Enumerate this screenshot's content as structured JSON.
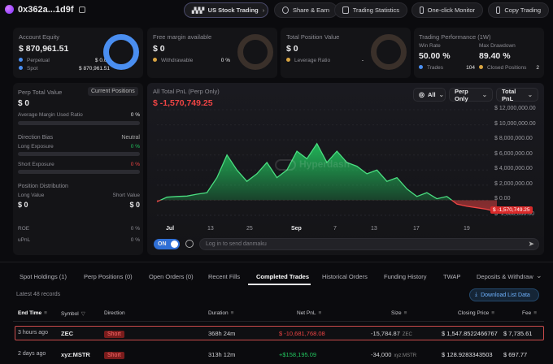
{
  "header": {
    "address": "0x362a...1d9f",
    "us_stock_trading": "US Stock Trading",
    "share_earn": "Share & Earn",
    "trading_statistics": "Trading Statistics",
    "one_click_monitor": "One-click Monitor",
    "copy_trading": "Copy Trading"
  },
  "account_equity": {
    "label": "Account Equity",
    "value": "$ 870,961.51",
    "perpetual_label": "Perpetual",
    "perpetual_value": "$ 0.00",
    "spot_label": "Spot",
    "spot_value": "$ 870,961.51"
  },
  "free_margin": {
    "label": "Free margin available",
    "value": "$ 0",
    "withdrawable_label": "Withdrawable",
    "withdrawable_value": "0 %"
  },
  "total_position": {
    "label": "Total Position Value",
    "value": "$ 0",
    "leverage_label": "Leverage Ratio",
    "leverage_value": "-"
  },
  "trading_performance": {
    "label": "Trading Performance (1W)",
    "win_rate_label": "Win Rate",
    "win_rate_value": "50.00 %",
    "max_drawdown_label": "Max Drawdown",
    "max_drawdown_value": "89.40 %",
    "trades_label": "Trades",
    "trades_value": "104",
    "closed_positions_label": "Closed Positions",
    "closed_positions_value": "2"
  },
  "perp_panel": {
    "perp_total_label": "Perp Total Value",
    "current_positions": "Current Positions",
    "perp_total_value": "$ 0",
    "avg_margin_label": "Average Margin Used Ratio",
    "avg_margin_value": "0 %",
    "direction_bias_label": "Direction Bias",
    "direction_bias_value": "Neutral",
    "long_exposure_label": "Long Exposure",
    "long_exposure_value": "0 %",
    "short_exposure_label": "Short Exposure",
    "short_exposure_value": "0 %",
    "position_distribution_label": "Position Distribution",
    "long_value_label": "Long Value",
    "short_value_label": "Short Value",
    "long_value": "$ 0",
    "short_value": "$ 0",
    "roe_label": "ROE",
    "roe_value": "0 %",
    "upnl_label": "uPnL",
    "upnl_value": "0 %"
  },
  "pnl_chart": {
    "title": "All Total PnL (Perp Only)",
    "value": "$ -1,570,749.25",
    "filter_all": "All",
    "filter_perp": "Perp Only",
    "filter_total": "Total PnL",
    "watermark": "Hyperdash",
    "current_label": "$ -1,570,749.25",
    "toggle_label": "ON",
    "danmaku_placeholder": "Log in to send danmaku"
  },
  "chart_data": {
    "type": "area",
    "x_tick_labels": [
      "Jul",
      "13",
      "25",
      "Sep",
      "7",
      "13",
      "17",
      "19"
    ],
    "y_tick_labels": [
      "$ 12,000,000.00",
      "$ 10,000,000.00",
      "$ 8,000,000.00",
      "$ 6,000,000.00",
      "$ 4,000,000.00",
      "$ 2,000,000.00",
      "$ 0.00",
      "$ -2,000,000.00"
    ],
    "ylim": [
      -2000000,
      12000000
    ],
    "values": [
      -200000,
      400000,
      500000,
      550000,
      800000,
      1000000,
      3000000,
      6000000,
      4000000,
      2500000,
      3500000,
      5000000,
      3000000,
      4000000,
      6500000,
      5500000,
      7500000,
      5000000,
      6500000,
      5000000,
      4500000,
      3500000,
      4000000,
      2500000,
      3000000,
      1500000,
      500000,
      1000000,
      200000,
      500000,
      -500000,
      -800000,
      -1000000,
      -1200000,
      -1570749
    ],
    "color_positive": "#22c55e",
    "color_negative": "#ef4444"
  },
  "tabs": [
    "Spot Holdings (1)",
    "Perp Positions (0)",
    "Open Orders (0)",
    "Recent Fills",
    "Completed Trades",
    "Historical Orders",
    "Funding History",
    "TWAP",
    "Deposits & Withdraw"
  ],
  "records": {
    "count_label": "Latest 48 records",
    "download_label": "Download List Data"
  },
  "table": {
    "headers": [
      "End Time",
      "Symbol",
      "Direction",
      "Duration",
      "Net PnL",
      "Size",
      "Closing Price",
      "Fee"
    ],
    "rows": [
      {
        "end_time": "3 hours ago",
        "symbol": "ZEC",
        "direction": "Short",
        "duration": "368h 24m",
        "net_pnl": "$ -10,681,768.08",
        "size": "-15,784.87",
        "size_unit": "ZEC",
        "closing_price": "$ 1,547.8522466767",
        "fee": "$ 7,735.61"
      },
      {
        "end_time": "2 days ago",
        "symbol": "xyz:MSTR",
        "direction": "Short",
        "duration": "313h 12m",
        "net_pnl": "+$158,195.09",
        "size": "-34,000",
        "size_unit": "xyz:MSTR",
        "closing_price": "$ 128.9283343503",
        "fee": "$ 697.77"
      }
    ]
  },
  "colors": {
    "accent_blue": "#4a8ef0",
    "positive": "#22c55e",
    "negative": "#ef4444"
  }
}
